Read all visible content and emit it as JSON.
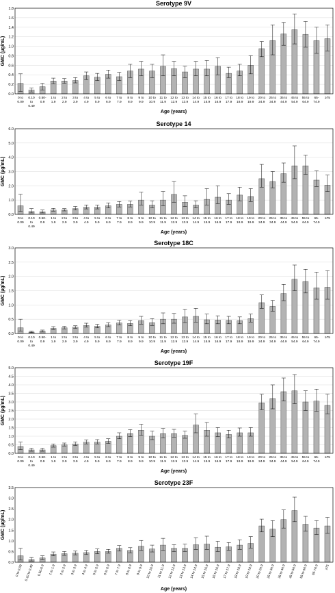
{
  "chart_data": [
    {
      "type": "bar",
      "title": "Serotype 9V",
      "ylabel": "GMC (µg/mL)",
      "xlabel": "Age (years)",
      "ylim": [
        0,
        1.8
      ],
      "yticks": [
        "0.0",
        "0.2",
        "0.4",
        "0.6",
        "0.8",
        "1.0",
        "1.2",
        "1.4",
        "1.6",
        "1.8"
      ],
      "grid": true,
      "categories": [
        [
          "0 to",
          "0.09"
        ],
        [
          "0.10",
          "to",
          "0.49"
        ],
        [
          "0.50-",
          "0.9"
        ],
        [
          "1 to",
          "1.9"
        ],
        [
          "2 to",
          "2.9"
        ],
        [
          "3 to",
          "3.9"
        ],
        [
          "4 to",
          "4.9"
        ],
        [
          "5 to",
          "5.9"
        ],
        [
          "6 to",
          "6.9"
        ],
        [
          "7 to",
          "7.9"
        ],
        [
          "8 to",
          "8.9"
        ],
        [
          "9 to",
          "9.9"
        ],
        [
          "10 to",
          "10.9"
        ],
        [
          "11 to",
          "11.9"
        ],
        [
          "12 to",
          "12.9"
        ],
        [
          "13 to",
          "13.9"
        ],
        [
          "14 to",
          "14.9"
        ],
        [
          "15 to",
          "15.9"
        ],
        [
          "16 to",
          "16.9"
        ],
        [
          "17 to",
          "17.9"
        ],
        [
          "18 to",
          "18.9"
        ],
        [
          "19 to",
          "19.9"
        ],
        [
          "20 to",
          "24.9"
        ],
        [
          "25 to",
          "34.9"
        ],
        [
          "35 to",
          "44.9"
        ],
        [
          "45 to",
          "54.9"
        ],
        [
          "55 to",
          "64.9"
        ],
        [
          "65-",
          "74.9"
        ],
        [
          "≥75"
        ]
      ],
      "values": [
        0.22,
        0.08,
        0.15,
        0.27,
        0.27,
        0.28,
        0.38,
        0.35,
        0.41,
        0.36,
        0.48,
        0.52,
        0.48,
        0.58,
        0.53,
        0.46,
        0.52,
        0.52,
        0.58,
        0.43,
        0.48,
        0.6,
        0.95,
        1.12,
        1.26,
        1.35,
        1.25,
        1.12,
        1.16
      ],
      "err_low": [
        0.05,
        0.04,
        0.08,
        0.21,
        0.22,
        0.23,
        0.3,
        0.28,
        0.33,
        0.28,
        0.34,
        0.38,
        0.34,
        0.38,
        0.38,
        0.34,
        0.38,
        0.38,
        0.4,
        0.34,
        0.38,
        0.42,
        0.78,
        0.82,
        1.02,
        1.05,
        0.98,
        0.85,
        0.9
      ],
      "err_high": [
        0.42,
        0.12,
        0.22,
        0.33,
        0.32,
        0.34,
        0.46,
        0.43,
        0.5,
        0.45,
        0.62,
        0.68,
        0.62,
        0.82,
        0.68,
        0.58,
        0.68,
        0.7,
        0.76,
        0.56,
        0.62,
        0.8,
        1.1,
        1.45,
        1.5,
        1.68,
        1.52,
        1.4,
        1.45
      ]
    },
    {
      "type": "bar",
      "title": "Serotype 14",
      "ylabel": "GMC (µg/mL)",
      "xlabel": "Age (years)",
      "ylim": [
        0,
        6.0
      ],
      "yticks": [
        "0.0",
        "1.0",
        "2.0",
        "3.0",
        "4.0",
        "5.0",
        "6.0"
      ],
      "grid": true,
      "categories": [
        [
          "0 to",
          "0.09"
        ],
        [
          "0.10",
          "to",
          "0.49"
        ],
        [
          "0.50-",
          "0.9"
        ],
        [
          "1 to",
          "1.9"
        ],
        [
          "2 to",
          "2.9"
        ],
        [
          "3 to",
          "3.9"
        ],
        [
          "4 to",
          "4.9"
        ],
        [
          "5 to",
          "5.9"
        ],
        [
          "6 to",
          "6.9"
        ],
        [
          "7 to",
          "7.9"
        ],
        [
          "8 to",
          "8.9"
        ],
        [
          "9 to",
          "9.9"
        ],
        [
          "10 to",
          "10.9"
        ],
        [
          "11 to",
          "11.9"
        ],
        [
          "12 to",
          "12.9"
        ],
        [
          "13 to",
          "13.9"
        ],
        [
          "14 to",
          "14.9"
        ],
        [
          "15 to",
          "15.9"
        ],
        [
          "16 to",
          "16.9"
        ],
        [
          "17 to",
          "17.9"
        ],
        [
          "18 to",
          "18.9"
        ],
        [
          "19 to",
          "19.9"
        ],
        [
          "20 to",
          "24.9"
        ],
        [
          "25 to",
          "34.9"
        ],
        [
          "35 to",
          "44.9"
        ],
        [
          "45 to",
          "54.9"
        ],
        [
          "55 to",
          "64.9"
        ],
        [
          "65-",
          "74.9"
        ],
        [
          "≥75"
        ]
      ],
      "values": [
        0.6,
        0.2,
        0.18,
        0.3,
        0.3,
        0.4,
        0.5,
        0.5,
        0.6,
        0.7,
        0.7,
        1.0,
        0.65,
        1.0,
        1.4,
        0.85,
        0.65,
        1.05,
        1.2,
        1.0,
        1.35,
        1.25,
        2.5,
        2.3,
        2.85,
        3.4,
        3.4,
        2.4,
        2.05
      ],
      "err_low": [
        0.2,
        0.1,
        0.1,
        0.22,
        0.24,
        0.3,
        0.38,
        0.38,
        0.45,
        0.52,
        0.52,
        0.65,
        0.45,
        0.6,
        0.85,
        0.55,
        0.45,
        0.65,
        0.75,
        0.7,
        0.95,
        0.9,
        1.9,
        1.85,
        2.25,
        2.5,
        2.8,
        1.95,
        1.6
      ],
      "err_high": [
        1.4,
        0.4,
        0.3,
        0.42,
        0.4,
        0.55,
        0.66,
        0.65,
        0.8,
        0.9,
        0.92,
        1.55,
        0.95,
        1.6,
        2.3,
        1.3,
        0.95,
        1.8,
        2.0,
        1.45,
        1.9,
        1.8,
        3.5,
        3.0,
        3.6,
        4.8,
        4.15,
        3.05,
        2.75
      ]
    },
    {
      "type": "bar",
      "title": "Serotype 18C",
      "ylabel": "GMC (µg/mL)",
      "xlabel": "Age (years)",
      "ylim": [
        0,
        3.0
      ],
      "yticks": [
        "0.0",
        "0.5",
        "1.0",
        "1.5",
        "2.0",
        "2.5",
        "3.0"
      ],
      "grid": true,
      "categories": [
        [
          "0 to",
          "0.09"
        ],
        [
          "0.10",
          "to",
          "0.49"
        ],
        [
          "0.50-",
          "0.9"
        ],
        [
          "1 to",
          "1.9"
        ],
        [
          "2 to",
          "2.9"
        ],
        [
          "3 to",
          "3.9"
        ],
        [
          "4 to",
          "4.9"
        ],
        [
          "5 to",
          "5.9"
        ],
        [
          "6 to",
          "6.9"
        ],
        [
          "7 to",
          "7.9"
        ],
        [
          "8 to",
          "8.9"
        ],
        [
          "9 to",
          "9.9"
        ],
        [
          "10 to",
          "10.9"
        ],
        [
          "11 to",
          "11.9"
        ],
        [
          "12 to",
          "12.9"
        ],
        [
          "13 to",
          "13.9"
        ],
        [
          "14 to",
          "14.9"
        ],
        [
          "15 to",
          "15.9"
        ],
        [
          "16 to",
          "16.9"
        ],
        [
          "17 to",
          "17.9"
        ],
        [
          "18 to",
          "18.9"
        ],
        [
          "19 to",
          "19.9"
        ],
        [
          "20 to",
          "24.9"
        ],
        [
          "25 to",
          "34.9"
        ],
        [
          "35 to",
          "44.9"
        ],
        [
          "45 to",
          "54.9"
        ],
        [
          "55 to",
          "64.9"
        ],
        [
          "65-",
          "74.9"
        ],
        [
          "≥75"
        ]
      ],
      "values": [
        0.2,
        0.05,
        0.08,
        0.18,
        0.2,
        0.22,
        0.28,
        0.25,
        0.3,
        0.37,
        0.35,
        0.45,
        0.38,
        0.5,
        0.5,
        0.58,
        0.6,
        0.48,
        0.47,
        0.46,
        0.45,
        0.52,
        1.08,
        0.95,
        1.4,
        1.9,
        1.82,
        1.6,
        1.62
      ],
      "err_low": [
        0.08,
        0.03,
        0.05,
        0.14,
        0.16,
        0.18,
        0.22,
        0.2,
        0.24,
        0.3,
        0.27,
        0.33,
        0.28,
        0.34,
        0.36,
        0.38,
        0.4,
        0.34,
        0.34,
        0.34,
        0.34,
        0.4,
        0.88,
        0.78,
        1.15,
        1.5,
        1.42,
        1.2,
        1.2
      ],
      "err_high": [
        0.5,
        0.08,
        0.12,
        0.24,
        0.25,
        0.27,
        0.36,
        0.32,
        0.38,
        0.46,
        0.45,
        0.6,
        0.52,
        0.72,
        0.7,
        0.85,
        0.88,
        0.68,
        0.62,
        0.6,
        0.58,
        0.68,
        1.35,
        1.16,
        1.72,
        2.4,
        2.25,
        2.15,
        2.2
      ]
    },
    {
      "type": "bar",
      "title": "Serotype 19F",
      "ylabel": "GMC (µg/mL)",
      "xlabel": "Age (years)",
      "ylim": [
        0,
        5.0
      ],
      "yticks": [
        "0.0",
        "0.5",
        "1.0",
        "1.5",
        "2.0",
        "2.5",
        "3.0",
        "3.5",
        "4.0",
        "4.5",
        "5.0"
      ],
      "grid": true,
      "categories": [
        [
          "0 to",
          "0.09"
        ],
        [
          "0.10",
          "to",
          "0.49"
        ],
        [
          "0.50-",
          "0.9"
        ],
        [
          "1 to",
          "1.9"
        ],
        [
          "2 to",
          "2.9"
        ],
        [
          "3 to",
          "3.9"
        ],
        [
          "4 to",
          "4.9"
        ],
        [
          "5 to",
          "5.9"
        ],
        [
          "6 to",
          "6.9"
        ],
        [
          "7 to",
          "7.9"
        ],
        [
          "8 to",
          "8.9"
        ],
        [
          "9 to",
          "9.9"
        ],
        [
          "10 to",
          "10.9"
        ],
        [
          "11 to",
          "11.9"
        ],
        [
          "12 to",
          "12.9"
        ],
        [
          "13 to",
          "13.9"
        ],
        [
          "14 to",
          "14.9"
        ],
        [
          "15 to",
          "15.9"
        ],
        [
          "16 to",
          "16.9"
        ],
        [
          "17 to",
          "17.9"
        ],
        [
          "18 to",
          "18.9"
        ],
        [
          "19 to",
          "19.9"
        ],
        [
          "20 to",
          "24.9"
        ],
        [
          "25 to",
          "34.9"
        ],
        [
          "35 to",
          "44.9"
        ],
        [
          "45 to",
          "54.9"
        ],
        [
          "55 to",
          "64.9"
        ],
        [
          "65-",
          "74.9"
        ],
        [
          "≥75"
        ]
      ],
      "values": [
        0.4,
        0.2,
        0.2,
        0.45,
        0.5,
        0.55,
        0.65,
        0.65,
        0.7,
        1.0,
        1.15,
        1.35,
        1.0,
        1.15,
        1.15,
        1.05,
        1.65,
        1.35,
        1.2,
        1.1,
        1.2,
        1.2,
        2.95,
        3.2,
        3.6,
        3.65,
        3.0,
        3.05,
        2.8
      ],
      "err_low": [
        0.22,
        0.12,
        0.12,
        0.36,
        0.42,
        0.46,
        0.55,
        0.55,
        0.58,
        0.85,
        0.98,
        1.05,
        0.8,
        0.9,
        0.95,
        0.88,
        1.2,
        1.0,
        0.98,
        0.9,
        1.0,
        1.0,
        2.55,
        2.6,
        3.05,
        2.9,
        2.5,
        2.45,
        2.3
      ],
      "err_high": [
        0.65,
        0.3,
        0.3,
        0.55,
        0.6,
        0.66,
        0.78,
        0.8,
        0.85,
        1.2,
        1.38,
        1.7,
        1.3,
        1.45,
        1.4,
        1.3,
        2.3,
        1.8,
        1.5,
        1.35,
        1.48,
        1.5,
        3.45,
        4.0,
        4.4,
        4.6,
        3.65,
        3.75,
        3.45
      ]
    },
    {
      "type": "bar",
      "title": "Serotype 23F",
      "ylabel": "GMC (µg/mL)",
      "xlabel": "Age (years)",
      "ylim": [
        0,
        3.5
      ],
      "yticks": [
        "0.0",
        "0.5",
        "1.0",
        "1.5",
        "2.0",
        "2.5",
        "3.0",
        "3.5"
      ],
      "grid": false,
      "categories": [
        [
          "0 to 0.09"
        ],
        [
          "0.10 to 0.49"
        ],
        [
          "0.50-0.9"
        ],
        [
          "1 to 1.9"
        ],
        [
          "2 to 2.9"
        ],
        [
          "3 to 3.9"
        ],
        [
          "4 to 4.9"
        ],
        [
          "5 to 5.9"
        ],
        [
          "6 to 6.9"
        ],
        [
          "7 to 7.9"
        ],
        [
          "8 to 8.9"
        ],
        [
          "9 to 9.9"
        ],
        [
          "10 to 10.9"
        ],
        [
          "11 to 11.9"
        ],
        [
          "12 to 12.9"
        ],
        [
          "13 to 13.9"
        ],
        [
          "14 to 14.9"
        ],
        [
          "15 to 15.9"
        ],
        [
          "16 to 16.9"
        ],
        [
          "17 to 17.9"
        ],
        [
          "18 to 18.9"
        ],
        [
          "19 to 19.9"
        ],
        [
          "20 to 24.9"
        ],
        [
          "25 to 34.9"
        ],
        [
          "35 to 44.9"
        ],
        [
          "45 to 54.9"
        ],
        [
          "55 to 64.9"
        ],
        [
          "65-74.9"
        ],
        [
          "≥75"
        ]
      ],
      "values": [
        0.3,
        0.12,
        0.2,
        0.38,
        0.4,
        0.42,
        0.45,
        0.5,
        0.5,
        0.65,
        0.55,
        0.75,
        0.62,
        0.8,
        0.65,
        0.65,
        0.82,
        0.85,
        0.7,
        0.72,
        0.8,
        0.88,
        1.7,
        1.55,
        2.0,
        2.42,
        1.78,
        1.6,
        1.7
      ],
      "err_low": [
        0.1,
        0.06,
        0.12,
        0.3,
        0.32,
        0.34,
        0.36,
        0.4,
        0.42,
        0.52,
        0.44,
        0.55,
        0.48,
        0.55,
        0.5,
        0.5,
        0.6,
        0.6,
        0.5,
        0.56,
        0.6,
        0.66,
        1.42,
        1.2,
        1.6,
        1.9,
        1.45,
        1.3,
        1.35
      ],
      "err_high": [
        0.65,
        0.22,
        0.3,
        0.48,
        0.5,
        0.52,
        0.55,
        0.62,
        0.6,
        0.78,
        0.68,
        1.02,
        0.8,
        1.12,
        0.82,
        0.85,
        1.15,
        1.22,
        0.98,
        0.92,
        1.05,
        1.2,
        2.02,
        1.95,
        2.45,
        3.05,
        2.15,
        1.95,
        2.1
      ]
    }
  ]
}
